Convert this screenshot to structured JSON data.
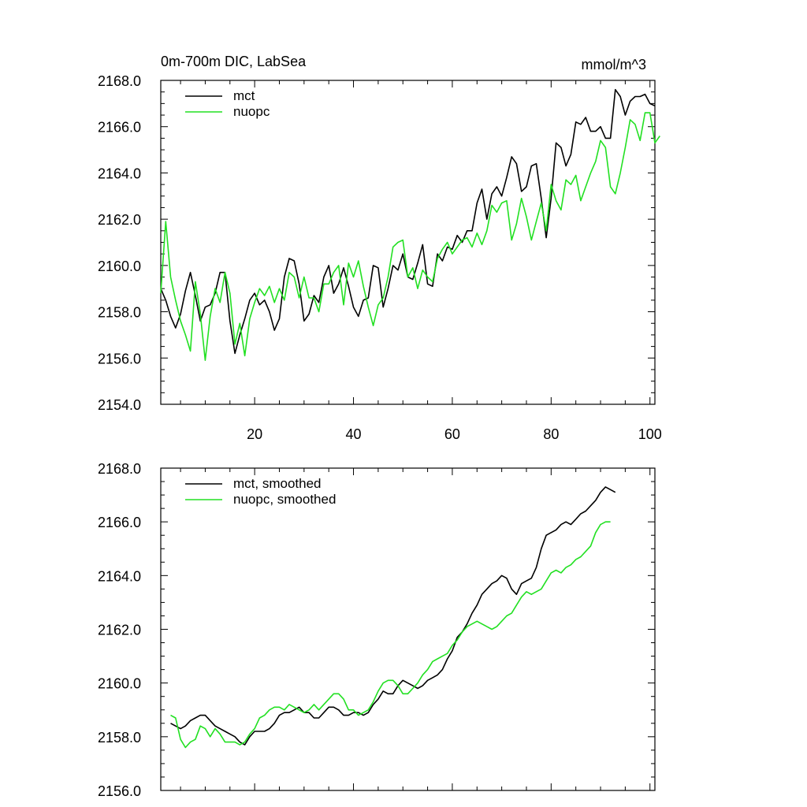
{
  "figure": {
    "title_left": "0m-700m DIC, LabSea",
    "title_right": "mmol/m^3"
  },
  "colors": {
    "mct": "#000000",
    "nuopc": "#22e022",
    "axis": "#000000"
  },
  "chart_data": [
    {
      "type": "line",
      "title": "0m-700m DIC, LabSea",
      "units": "mmol/m^3",
      "xlim": [
        1,
        101
      ],
      "ylim": [
        2154,
        2168
      ],
      "xticks": [
        20,
        40,
        60,
        80,
        100
      ],
      "xtick_labels": [
        "20",
        "40",
        "60",
        "80",
        "100"
      ],
      "show_xtick_labels": true,
      "yticks": [
        2154,
        2156,
        2158,
        2160,
        2162,
        2164,
        2166,
        2168
      ],
      "ytick_labels": [
        "2154.0",
        "2156.0",
        "2158.0",
        "2160.0",
        "2162.0",
        "2164.0",
        "2166.0",
        "2168.0"
      ],
      "legend_position": "top-left",
      "series": [
        {
          "name": "mct",
          "color": "#000000",
          "x_start": 1,
          "values": [
            2159.0,
            2158.5,
            2157.8,
            2157.3,
            2157.9,
            2158.9,
            2159.7,
            2158.7,
            2157.6,
            2158.2,
            2158.3,
            2158.8,
            2159.7,
            2159.7,
            2157.6,
            2156.2,
            2157.0,
            2157.7,
            2158.5,
            2158.8,
            2158.3,
            2158.5,
            2158.0,
            2157.2,
            2157.7,
            2159.5,
            2160.3,
            2160.2,
            2159.2,
            2157.6,
            2157.9,
            2158.7,
            2158.4,
            2159.5,
            2160.0,
            2158.8,
            2159.2,
            2159.9,
            2159.1,
            2158.2,
            2157.8,
            2158.5,
            2158.6,
            2160.0,
            2159.9,
            2158.2,
            2159.0,
            2160.0,
            2159.8,
            2160.5,
            2159.5,
            2159.4,
            2160.1,
            2160.9,
            2159.2,
            2159.1,
            2160.5,
            2160.2,
            2160.8,
            2160.7,
            2161.3,
            2161.0,
            2161.5,
            2161.5,
            2162.7,
            2163.3,
            2162.0,
            2163.1,
            2163.4,
            2163.0,
            2163.8,
            2164.7,
            2164.4,
            2163.2,
            2163.4,
            2164.3,
            2164.4,
            2162.9,
            2161.2,
            2162.9,
            2165.3,
            2165.1,
            2164.3,
            2164.8,
            2166.2,
            2166.1,
            2166.4,
            2165.8,
            2165.8,
            2166.0,
            2165.5,
            2165.5,
            2167.6,
            2167.3,
            2166.5,
            2167.1,
            2167.3,
            2167.3,
            2167.4,
            2167.0,
            2166.9
          ]
        },
        {
          "name": "nuopc",
          "color": "#22e022",
          "x_start": 1,
          "values": [
            2158.8,
            2161.9,
            2159.5,
            2158.5,
            2157.6,
            2157.0,
            2156.3,
            2159.3,
            2157.9,
            2155.9,
            2157.8,
            2159.0,
            2158.4,
            2159.7,
            2158.8,
            2156.6,
            2157.5,
            2156.1,
            2157.7,
            2158.4,
            2159.0,
            2158.7,
            2159.1,
            2158.4,
            2159.0,
            2158.5,
            2159.7,
            2159.5,
            2158.6,
            2159.5,
            2158.6,
            2158.6,
            2158.0,
            2159.2,
            2159.2,
            2159.7,
            2160.0,
            2158.3,
            2160.1,
            2159.5,
            2160.2,
            2159.1,
            2158.2,
            2157.4,
            2158.3,
            2158.6,
            2159.5,
            2160.8,
            2161.0,
            2161.1,
            2159.5,
            2159.9,
            2159.0,
            2159.8,
            2159.5,
            2159.3,
            2160.3,
            2160.7,
            2161.0,
            2160.5,
            2160.8,
            2161.1,
            2161.2,
            2160.8,
            2161.4,
            2160.9,
            2161.5,
            2162.6,
            2162.3,
            2162.7,
            2162.8,
            2161.1,
            2161.8,
            2162.9,
            2162.1,
            2161.1,
            2161.9,
            2162.7,
            2161.5,
            2163.5,
            2162.8,
            2162.4,
            2163.7,
            2163.5,
            2163.9,
            2162.8,
            2163.4,
            2164.0,
            2164.5,
            2165.4,
            2165.1,
            2163.4,
            2163.1,
            2164.0,
            2165.1,
            2166.3,
            2166.1,
            2165.4,
            2166.6,
            2166.6,
            2165.3,
            2165.6
          ]
        }
      ]
    },
    {
      "type": "line",
      "title": "",
      "xlim": [
        1,
        101
      ],
      "ylim": [
        2156,
        2168
      ],
      "xticks": [
        20,
        40,
        60,
        80,
        100
      ],
      "xtick_labels": [
        "20",
        "40",
        "60",
        "80",
        "100"
      ],
      "show_xtick_labels": false,
      "yticks": [
        2156,
        2158,
        2160,
        2162,
        2164,
        2166,
        2168
      ],
      "ytick_labels": [
        "2156.0",
        "2158.0",
        "2160.0",
        "2162.0",
        "2164.0",
        "2166.0",
        "2168.0"
      ],
      "legend_position": "top-left",
      "series": [
        {
          "name": "mct, smoothed",
          "color": "#000000",
          "x_start": 3,
          "values": [
            2158.5,
            2158.4,
            2158.3,
            2158.4,
            2158.6,
            2158.7,
            2158.8,
            2158.8,
            2158.6,
            2158.4,
            2158.3,
            2158.2,
            2158.1,
            2158.0,
            2157.8,
            2157.7,
            2158.0,
            2158.2,
            2158.2,
            2158.2,
            2158.3,
            2158.5,
            2158.8,
            2158.9,
            2158.9,
            2159.0,
            2159.1,
            2158.9,
            2158.9,
            2158.7,
            2158.7,
            2158.9,
            2159.1,
            2159.1,
            2159.0,
            2158.8,
            2158.8,
            2158.9,
            2158.9,
            2158.8,
            2158.9,
            2159.2,
            2159.4,
            2159.7,
            2159.6,
            2159.6,
            2159.9,
            2160.1,
            2160.0,
            2159.9,
            2159.8,
            2159.9,
            2160.1,
            2160.2,
            2160.3,
            2160.5,
            2160.9,
            2161.2,
            2161.7,
            2161.9,
            2162.2,
            2162.6,
            2162.9,
            2163.3,
            2163.5,
            2163.7,
            2163.8,
            2164.0,
            2163.9,
            2163.5,
            2163.3,
            2163.7,
            2163.8,
            2163.9,
            2164.3,
            2165.0,
            2165.5,
            2165.6,
            2165.7,
            2165.9,
            2166.0,
            2165.9,
            2166.1,
            2166.3,
            2166.4,
            2166.6,
            2166.8,
            2167.1,
            2167.3,
            2167.2,
            2167.1
          ]
        },
        {
          "name": "nuopc, smoothed",
          "color": "#22e022",
          "x_start": 3,
          "values": [
            2158.8,
            2158.7,
            2157.9,
            2157.6,
            2157.8,
            2157.9,
            2158.4,
            2158.3,
            2158.0,
            2158.3,
            2158.1,
            2157.8,
            2157.8,
            2157.8,
            2157.7,
            2157.8,
            2158.1,
            2158.3,
            2158.7,
            2158.8,
            2159.0,
            2159.1,
            2159.1,
            2159.0,
            2159.2,
            2159.1,
            2159.0,
            2158.9,
            2159.0,
            2159.2,
            2159.0,
            2159.2,
            2159.4,
            2159.6,
            2159.6,
            2159.4,
            2159.0,
            2159.0,
            2158.8,
            2158.9,
            2159.0,
            2159.3,
            2159.7,
            2160.0,
            2160.1,
            2160.1,
            2159.9,
            2159.6,
            2159.6,
            2159.8,
            2160.0,
            2160.3,
            2160.5,
            2160.8,
            2160.9,
            2161.0,
            2161.1,
            2161.4,
            2161.6,
            2161.9,
            2162.1,
            2162.2,
            2162.3,
            2162.2,
            2162.1,
            2162.0,
            2162.1,
            2162.3,
            2162.5,
            2162.6,
            2162.9,
            2163.2,
            2163.4,
            2163.3,
            2163.4,
            2163.5,
            2163.8,
            2164.1,
            2164.2,
            2164.1,
            2164.3,
            2164.4,
            2164.6,
            2164.7,
            2164.9,
            2165.1,
            2165.6,
            2165.9,
            2166.0,
            2166.0
          ]
        }
      ]
    }
  ]
}
